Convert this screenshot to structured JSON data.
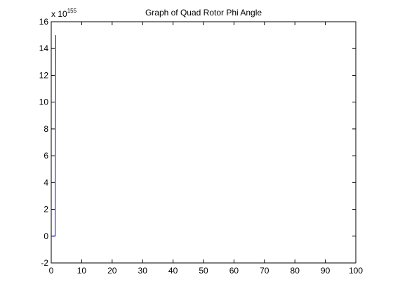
{
  "chart_data": {
    "type": "line",
    "title": "Graph of Quad Rotor Phi Angle",
    "xlabel": "",
    "ylabel": "",
    "exponent_label": {
      "base": "x 10",
      "power": "155"
    },
    "xlim": [
      0,
      100
    ],
    "ylim": [
      -2,
      16
    ],
    "xticks": [
      0,
      10,
      20,
      30,
      40,
      50,
      60,
      70,
      80,
      90,
      100
    ],
    "yticks": [
      -2,
      0,
      2,
      4,
      6,
      8,
      10,
      12,
      14,
      16
    ],
    "grid": false,
    "series": [
      {
        "color": "#0000ff",
        "x": [
          0,
          1,
          1.3,
          1.5
        ],
        "y": [
          0,
          0,
          0,
          15.0
        ]
      }
    ]
  }
}
